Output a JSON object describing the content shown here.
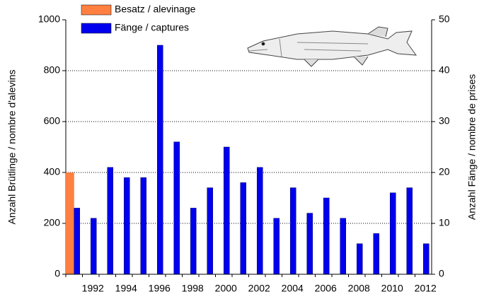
{
  "chart_data": {
    "type": "bar",
    "categories": [
      null,
      "1992",
      null,
      "1994",
      null,
      "1996",
      null,
      "1998",
      null,
      "2000",
      null,
      "2002",
      null,
      "2004",
      null,
      "2006",
      null,
      "2008",
      null,
      "2010",
      null,
      "2012"
    ],
    "series": [
      {
        "name": "Besatz / alevinage",
        "color": "#ff8040",
        "axis": "y",
        "values": [
          400,
          null,
          null,
          null,
          null,
          null,
          null,
          null,
          null,
          null,
          null,
          null,
          null,
          null,
          null,
          null,
          null,
          null,
          null,
          null,
          null,
          null
        ]
      },
      {
        "name": "Fänge / captures",
        "color": "#0000ee",
        "axis": "y2",
        "values": [
          13,
          11,
          21,
          19,
          19,
          45,
          26,
          13,
          17,
          25,
          18,
          21,
          11,
          17,
          12,
          15,
          11,
          6,
          8,
          16,
          17,
          6
        ]
      }
    ],
    "ylabel": "Anzahl Brütlinge / nombre d'alevins",
    "y2label": "Anzahl Fänge / nombre de prises",
    "ylim": [
      0,
      1000
    ],
    "yticks": [
      0,
      200,
      400,
      600,
      800,
      1000
    ],
    "y2lim": [
      0,
      50
    ],
    "y2ticks": [
      0,
      10,
      20,
      30,
      40,
      50
    ],
    "grid": true,
    "legend": "top-left"
  }
}
